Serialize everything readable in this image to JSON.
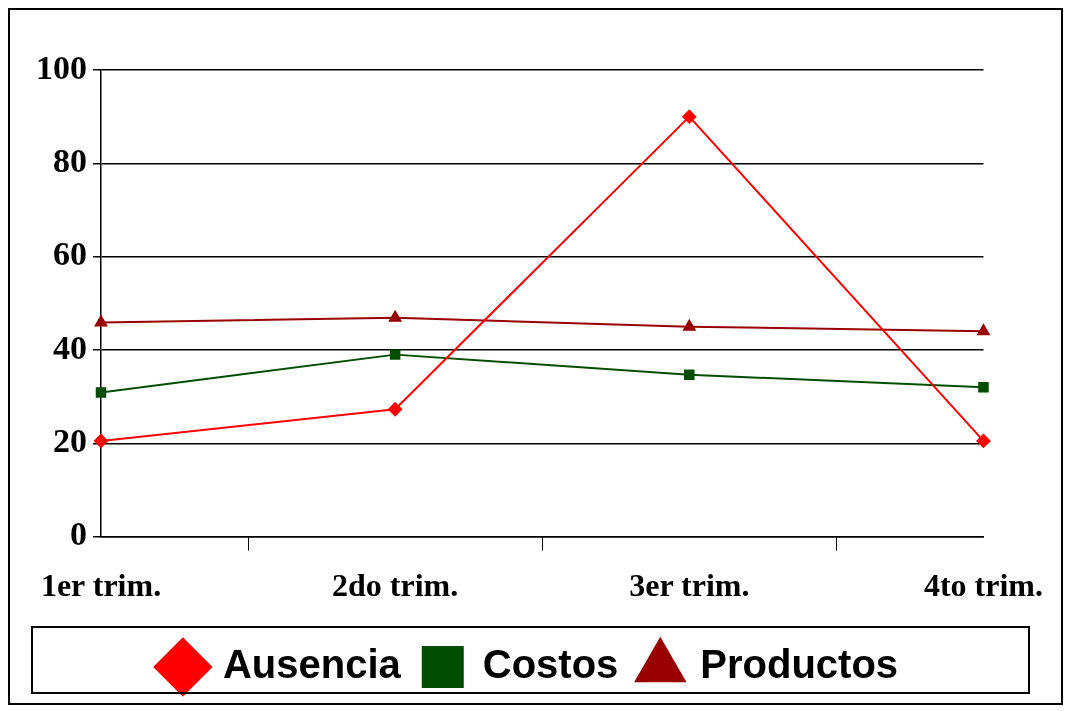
{
  "chart_data": {
    "type": "line",
    "categories": [
      "1er trim.",
      "2do trim.",
      "3er trim.",
      "4to trim."
    ],
    "series": [
      {
        "name": "Ausencia",
        "color": "#ff0000",
        "marker": "diamond",
        "values": [
          20.5,
          27.3,
          90,
          20.5
        ]
      },
      {
        "name": "Costos",
        "color": "#004d00",
        "marker": "square",
        "values": [
          30.9,
          39,
          34.7,
          32
        ]
      },
      {
        "name": "Productos",
        "color": "#990000",
        "marker": "triangle",
        "values": [
          45.9,
          46.9,
          45,
          44
        ]
      }
    ],
    "ylim": [
      0,
      100
    ],
    "yticks": [
      0,
      20,
      40,
      60,
      80,
      100
    ],
    "grid": "y",
    "legend": "bottom",
    "line_style": "solid"
  }
}
